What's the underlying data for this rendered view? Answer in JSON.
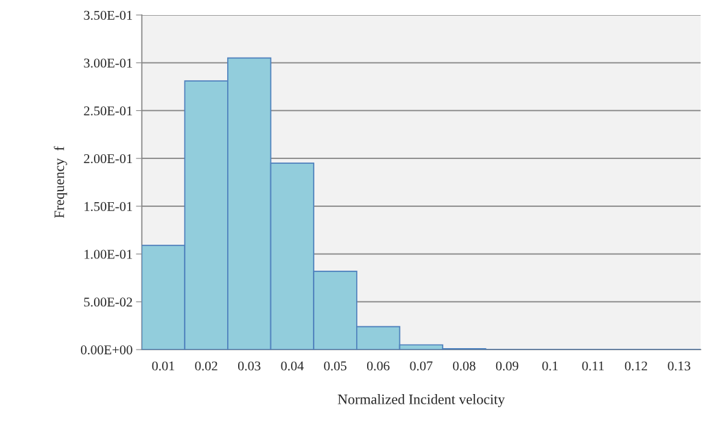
{
  "chart_data": {
    "type": "bar",
    "xlabel": "Normalized Incident velocity",
    "ylabel": "Frequency  f",
    "categories": [
      "0.01",
      "0.02",
      "0.03",
      "0.04",
      "0.05",
      "0.06",
      "0.07",
      "0.08",
      "0.09",
      "0.1",
      "0.11",
      "0.12",
      "0.13"
    ],
    "values": [
      0.109,
      0.281,
      0.305,
      0.195,
      0.082,
      0.024,
      0.005,
      0.001,
      0,
      0,
      0,
      0,
      0
    ],
    "color": "#92cddc",
    "ylim": [
      0,
      0.35
    ],
    "yticks": [
      {
        "value": 0,
        "label": "0.00E+00"
      },
      {
        "value": 0.05,
        "label": "5.00E-02"
      },
      {
        "value": 0.1,
        "label": "1.00E-01"
      },
      {
        "value": 0.15,
        "label": "1.50E-01"
      },
      {
        "value": 0.2,
        "label": "2.00E-01"
      },
      {
        "value": 0.25,
        "label": "2.50E-01"
      },
      {
        "value": 0.3,
        "label": "3.00E-01"
      },
      {
        "value": 0.35,
        "label": "3.50E-01"
      }
    ],
    "grid": "y"
  }
}
